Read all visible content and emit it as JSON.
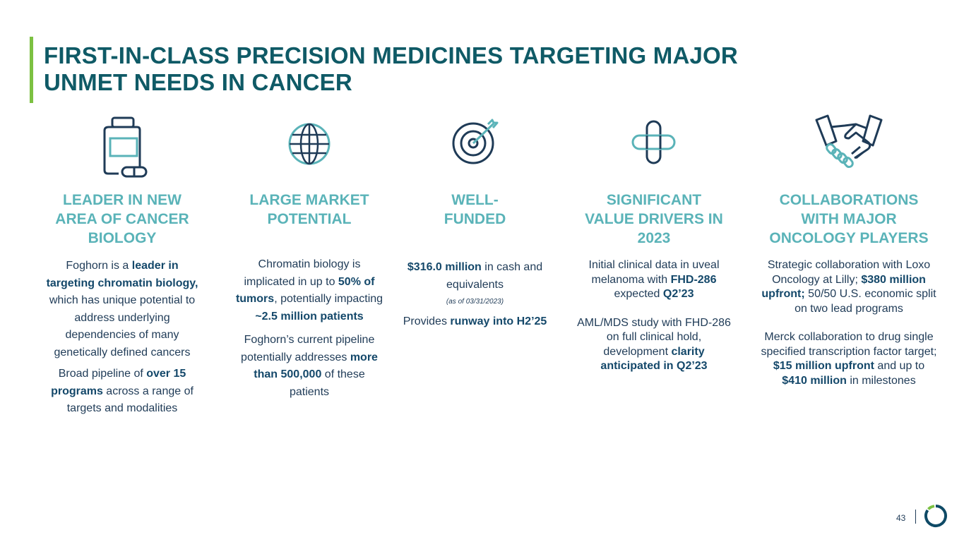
{
  "title": {
    "line1": "FIRST-IN-CLASS PRECISION MEDICINES TARGETING MAJOR",
    "line2": "UNMET NEEDS IN CANCER"
  },
  "columns": [
    {
      "icon": "medicine-bottle-icon",
      "heading": [
        "LEADER IN NEW",
        "AREA OF CANCER",
        "BIOLOGY"
      ],
      "p1": {
        "a": "Foghorn is a ",
        "b": "leader in targeting chromatin biology,",
        "c": " which has unique potential to address underlying dependencies of many genetically defined cancers"
      },
      "p2": {
        "a": "Broad pipeline of ",
        "b": "over 15 programs",
        "c": " across a range of targets and modalities"
      }
    },
    {
      "icon": "globe-icon",
      "heading": [
        "LARGE MARKET",
        "POTENTIAL"
      ],
      "p1": {
        "a": "Chromatin biology is implicated in up to ",
        "b": "50% of tumors",
        "c": ", potentially impacting ",
        "d": "~2.5 million patients"
      },
      "p2": {
        "a": "Foghorn’s current pipeline potentially addresses ",
        "b": "more than 500,000",
        "c": " of these patients"
      }
    },
    {
      "icon": "target-icon",
      "heading": [
        "WELL-",
        "FUNDED"
      ],
      "p1": {
        "a": "$316.0 million",
        "b": " in cash and equivalents"
      },
      "note": "(as of 03/31/2023)",
      "p2": {
        "a": "Provides ",
        "b": "runway into H2’25"
      }
    },
    {
      "icon": "medical-cross-icon",
      "heading": [
        "SIGNIFICANT",
        "VALUE DRIVERS IN",
        "2023"
      ],
      "p1": {
        "a": "Initial clinical data in uveal melanoma with ",
        "b": "FHD-286",
        "c": " expected ",
        "d": "Q2’23"
      },
      "p2": {
        "a": "AML/MDS study with FHD-286 on full clinical hold, development ",
        "b": "clarity anticipated in Q2’23"
      }
    },
    {
      "icon": "handshake-icon",
      "heading": [
        "COLLABORATIONS",
        "WITH MAJOR",
        "ONCOLOGY PLAYERS"
      ],
      "p1": {
        "a": "Strategic collaboration with Loxo Oncology at Lilly; ",
        "b": "$380 million upfront;",
        "c": " 50/50 U.S. economic split on two lead programs"
      },
      "p2": {
        "a": "Merck collaboration to drug single specified transcription factor target; ",
        "b": "$15 million upfront",
        "c": " and up to ",
        "d": "$410 million",
        "e": " in milestones"
      }
    }
  ],
  "footer": {
    "page_number": "43",
    "logo": "foghorn-logo-icon"
  },
  "colors": {
    "title": "#0f5a66",
    "heading": "#5ab3b8",
    "accent_bar": "#7cc142",
    "body": "#1f3b57"
  }
}
